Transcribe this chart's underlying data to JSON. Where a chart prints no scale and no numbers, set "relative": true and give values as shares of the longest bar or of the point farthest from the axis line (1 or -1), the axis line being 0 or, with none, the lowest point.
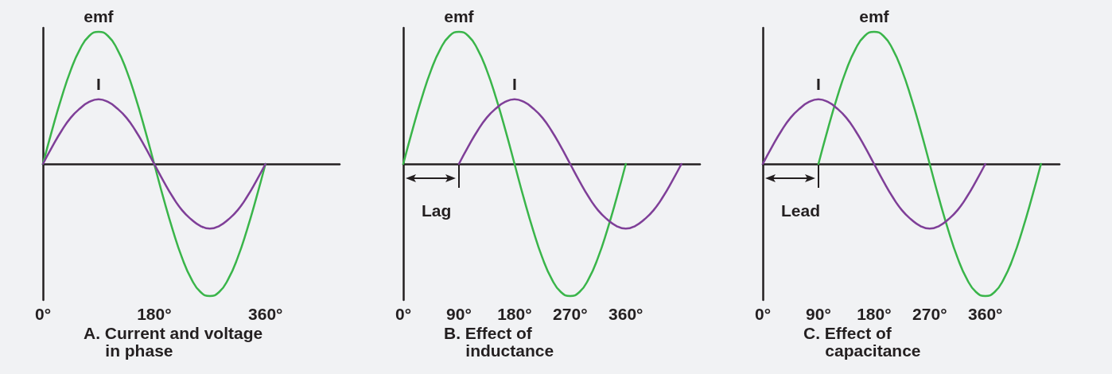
{
  "chart_data": [
    {
      "type": "line",
      "title": "A. Current and voltage\nin phase",
      "relative": true,
      "marker": "none",
      "tick_labels": "x",
      "xlim": [
        0,
        480
      ],
      "xticks": [
        {
          "value": 0,
          "label": "0°"
        },
        {
          "value": 180,
          "label": "180°"
        },
        {
          "value": 360,
          "label": "360°"
        }
      ],
      "series": [
        {
          "name": "emf",
          "color": "#3ab54a",
          "x": [
            0,
            15,
            30,
            45,
            60,
            75,
            90,
            105,
            120,
            135,
            150,
            165,
            180,
            195,
            210,
            225,
            240,
            255,
            270,
            285,
            300,
            315,
            330,
            345,
            360
          ],
          "values": [
            0,
            0.26,
            0.5,
            0.71,
            0.87,
            0.97,
            1,
            0.97,
            0.87,
            0.71,
            0.5,
            0.26,
            0,
            -0.26,
            -0.5,
            -0.71,
            -0.87,
            -0.97,
            -1,
            -0.97,
            -0.87,
            -0.71,
            -0.5,
            -0.26,
            0
          ]
        },
        {
          "name": "I",
          "color": "#7f3f98",
          "x": [
            0,
            15,
            30,
            45,
            60,
            75,
            90,
            105,
            120,
            135,
            150,
            165,
            180,
            195,
            210,
            225,
            240,
            255,
            270,
            285,
            300,
            315,
            330,
            345,
            360
          ],
          "values": [
            0,
            0.13,
            0.25,
            0.35,
            0.42,
            0.47,
            0.49,
            0.47,
            0.42,
            0.35,
            0.25,
            0.13,
            0,
            -0.13,
            -0.25,
            -0.35,
            -0.42,
            -0.47,
            -0.49,
            -0.47,
            -0.42,
            -0.35,
            -0.25,
            -0.13,
            0
          ]
        }
      ]
    },
    {
      "type": "line",
      "title": "B. Effect of\ninductance",
      "relative": true,
      "marker": "none",
      "tick_labels": "x",
      "xlim": [
        0,
        480
      ],
      "xticks": [
        {
          "value": 0,
          "label": "0°"
        },
        {
          "value": 90,
          "label": "90°"
        },
        {
          "value": 180,
          "label": "180°"
        },
        {
          "value": 270,
          "label": "270°"
        },
        {
          "value": 360,
          "label": "360°"
        }
      ],
      "annotations": [
        "Lag"
      ],
      "series": [
        {
          "name": "emf",
          "color": "#3ab54a",
          "x": [
            0,
            15,
            30,
            45,
            60,
            75,
            90,
            105,
            120,
            135,
            150,
            165,
            180,
            195,
            210,
            225,
            240,
            255,
            270,
            285,
            300,
            315,
            330,
            345,
            360
          ],
          "values": [
            0,
            0.26,
            0.5,
            0.71,
            0.87,
            0.97,
            1,
            0.97,
            0.87,
            0.71,
            0.5,
            0.26,
            0,
            -0.26,
            -0.5,
            -0.71,
            -0.87,
            -0.97,
            -1,
            -0.97,
            -0.87,
            -0.71,
            -0.5,
            -0.26,
            0
          ]
        },
        {
          "name": "I",
          "color": "#7f3f98",
          "x": [
            90,
            105,
            120,
            135,
            150,
            165,
            180,
            195,
            210,
            225,
            240,
            255,
            270,
            285,
            300,
            315,
            330,
            345,
            360,
            375,
            390,
            405,
            420,
            435,
            450
          ],
          "values": [
            0,
            0.13,
            0.25,
            0.35,
            0.42,
            0.47,
            0.49,
            0.47,
            0.42,
            0.35,
            0.25,
            0.13,
            0,
            -0.13,
            -0.25,
            -0.35,
            -0.42,
            -0.47,
            -0.49,
            -0.47,
            -0.42,
            -0.35,
            -0.25,
            -0.13,
            0
          ]
        }
      ]
    },
    {
      "type": "line",
      "title": "C. Effect of\ncapacitance",
      "relative": true,
      "marker": "none",
      "tick_labels": "x",
      "xlim": [
        0,
        480
      ],
      "xticks": [
        {
          "value": 0,
          "label": "0°"
        },
        {
          "value": 90,
          "label": "90°"
        },
        {
          "value": 180,
          "label": "180°"
        },
        {
          "value": 270,
          "label": "270°"
        },
        {
          "value": 360,
          "label": "360°"
        }
      ],
      "annotations": [
        "Lead"
      ],
      "series": [
        {
          "name": "emf",
          "color": "#3ab54a",
          "x": [
            90,
            105,
            120,
            135,
            150,
            165,
            180,
            195,
            210,
            225,
            240,
            255,
            270,
            285,
            300,
            315,
            330,
            345,
            360,
            375,
            390,
            405,
            420,
            435,
            450
          ],
          "values": [
            0,
            0.26,
            0.5,
            0.71,
            0.87,
            0.97,
            1,
            0.97,
            0.87,
            0.71,
            0.5,
            0.26,
            0,
            -0.26,
            -0.5,
            -0.71,
            -0.87,
            -0.97,
            -1,
            -0.97,
            -0.87,
            -0.71,
            -0.5,
            -0.26,
            0
          ]
        },
        {
          "name": "I",
          "color": "#7f3f98",
          "x": [
            0,
            15,
            30,
            45,
            60,
            75,
            90,
            105,
            120,
            135,
            150,
            165,
            180,
            195,
            210,
            225,
            240,
            255,
            270,
            285,
            300,
            315,
            330,
            345,
            360
          ],
          "values": [
            0,
            0.13,
            0.25,
            0.35,
            0.42,
            0.47,
            0.49,
            0.47,
            0.42,
            0.35,
            0.25,
            0.13,
            0,
            -0.13,
            -0.25,
            -0.35,
            -0.42,
            -0.47,
            -0.49,
            -0.47,
            -0.42,
            -0.35,
            -0.25,
            -0.13,
            0
          ]
        }
      ]
    }
  ]
}
